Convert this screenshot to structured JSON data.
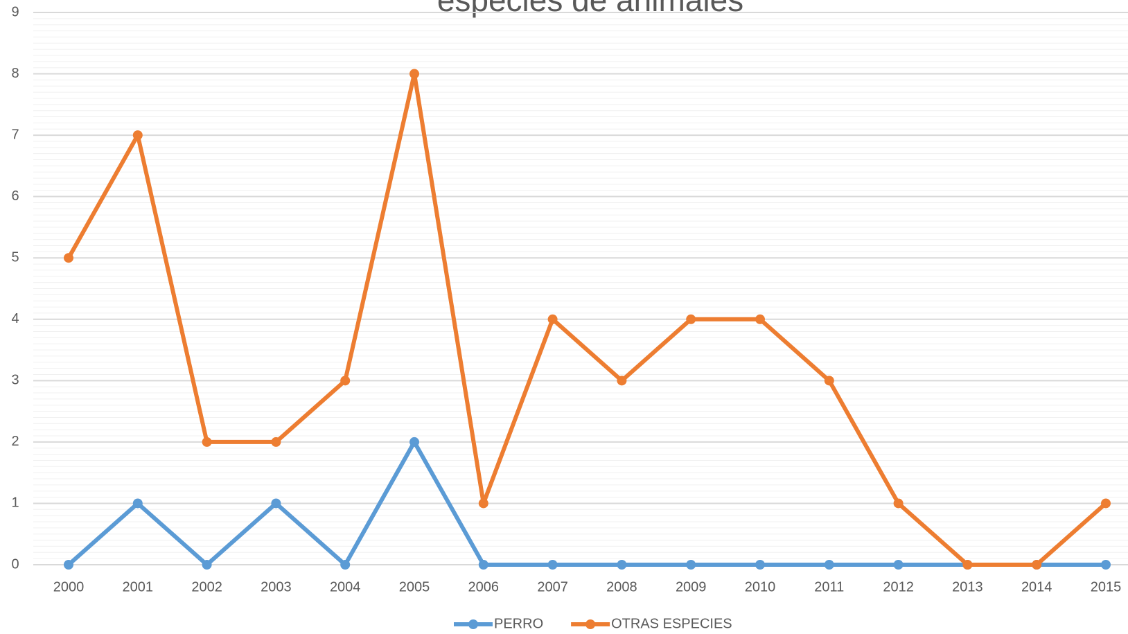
{
  "chart_data": {
    "type": "line",
    "title": "especies de animales",
    "categories": [
      "2000",
      "2001",
      "2002",
      "2003",
      "2004",
      "2005",
      "2006",
      "2007",
      "2008",
      "2009",
      "2010",
      "2011",
      "2012",
      "2013",
      "2014",
      "2015"
    ],
    "series": [
      {
        "name": "PERRO",
        "color": "#5b9bd5",
        "values": [
          0,
          1,
          0,
          1,
          0,
          2,
          0,
          0,
          0,
          0,
          0,
          0,
          0,
          0,
          0,
          0
        ]
      },
      {
        "name": "OTRAS ESPECIES",
        "color": "#ed7d31",
        "values": [
          5,
          7,
          2,
          2,
          3,
          8,
          1,
          4,
          3,
          4,
          4,
          3,
          1,
          0,
          0,
          1
        ]
      }
    ],
    "ylim": [
      0,
      9
    ],
    "yticks": [
      0,
      1,
      2,
      3,
      4,
      5,
      6,
      7,
      8,
      9
    ],
    "grid": true,
    "legend": "bottom"
  }
}
